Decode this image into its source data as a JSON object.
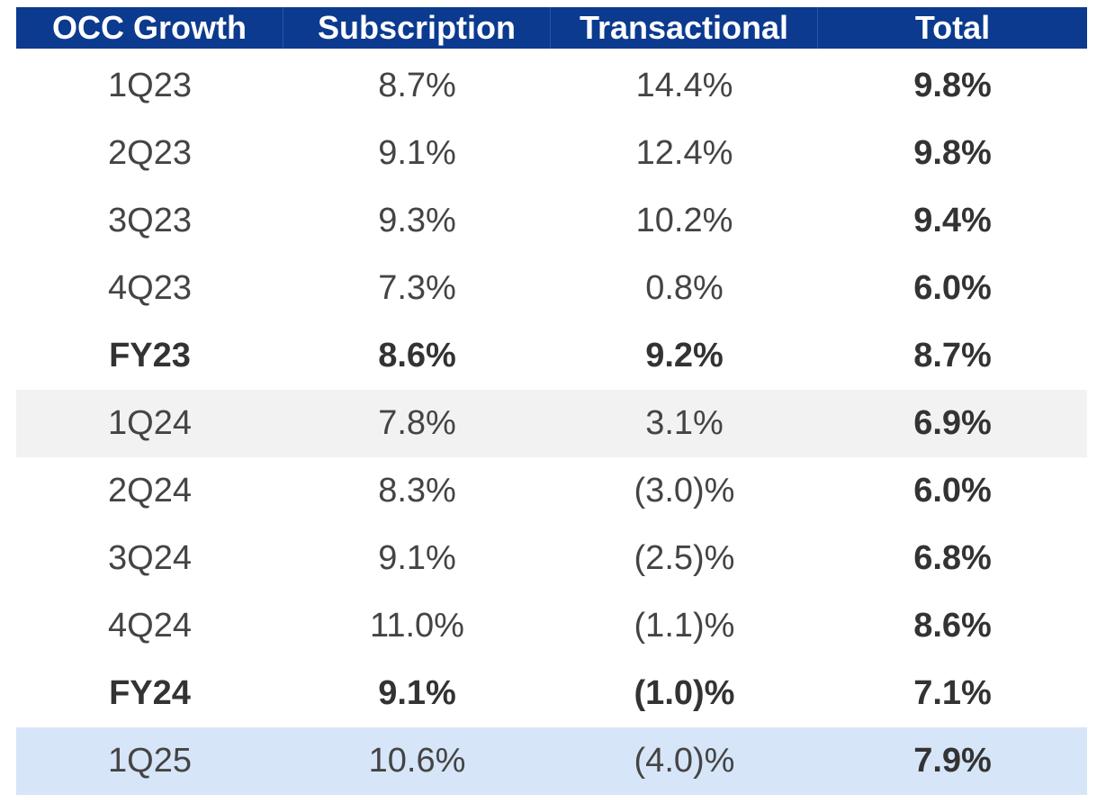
{
  "chart_data": {
    "type": "table",
    "columns": [
      "OCC Growth",
      "Subscription",
      "Transactional",
      "Total"
    ],
    "rows": [
      {
        "period": "1Q23",
        "subscription": "8.7%",
        "transactional": "14.4%",
        "total": "9.8%"
      },
      {
        "period": "2Q23",
        "subscription": "9.1%",
        "transactional": "12.4%",
        "total": "9.8%"
      },
      {
        "period": "3Q23",
        "subscription": "9.3%",
        "transactional": "10.2%",
        "total": "9.4%"
      },
      {
        "period": "4Q23",
        "subscription": "7.3%",
        "transactional": "0.8%",
        "total": "6.0%"
      },
      {
        "period": "FY23",
        "subscription": "8.6%",
        "transactional": "9.2%",
        "total": "8.7%"
      },
      {
        "period": "1Q24",
        "subscription": "7.8%",
        "transactional": "3.1%",
        "total": "6.9%"
      },
      {
        "period": "2Q24",
        "subscription": "8.3%",
        "transactional": "(3.0)%",
        "total": "6.0%"
      },
      {
        "period": "3Q24",
        "subscription": "9.1%",
        "transactional": "(2.5)%",
        "total": "6.8%"
      },
      {
        "period": "4Q24",
        "subscription": "11.0%",
        "transactional": "(1.1)%",
        "total": "8.6%"
      },
      {
        "period": "FY24",
        "subscription": "9.1%",
        "transactional": "(1.0)%",
        "total": "7.1%"
      },
      {
        "period": "1Q25",
        "subscription": "10.6%",
        "transactional": "(4.0)%",
        "total": "7.9%"
      }
    ],
    "numeric_values_percent": {
      "subscription": [
        8.7,
        9.1,
        9.3,
        7.3,
        8.6,
        7.8,
        8.3,
        9.1,
        11.0,
        9.1,
        10.6
      ],
      "transactional": [
        14.4,
        12.4,
        10.2,
        0.8,
        9.2,
        3.1,
        -3.0,
        -2.5,
        -1.1,
        -1.0,
        -4.0
      ],
      "total": [
        9.8,
        9.8,
        9.4,
        6.0,
        8.7,
        6.9,
        6.0,
        6.8,
        8.6,
        7.1,
        7.9
      ]
    }
  },
  "colors": {
    "header_bg": "#0b3a8f",
    "header_text": "#ffffff",
    "shaded_row": "#f2f2f2",
    "highlight_row": "#d6e5f8",
    "body_text": "#444444"
  }
}
